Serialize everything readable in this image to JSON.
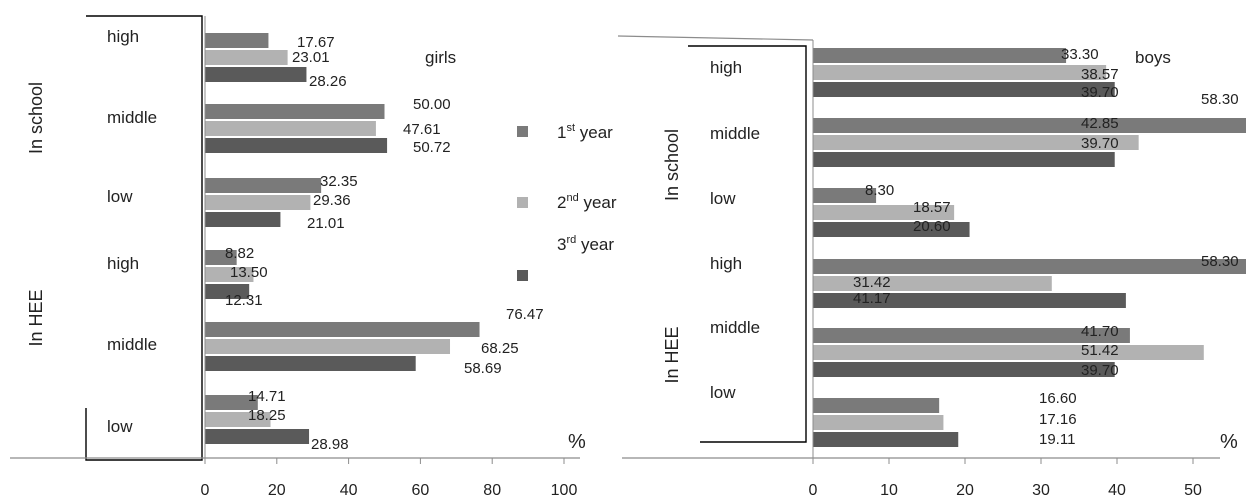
{
  "colors": {
    "year1": "#7a7a7a",
    "year2": "#b2b2b2",
    "year3": "#5a5a5a",
    "axis": "#8c8c8c",
    "bracket": "#000000"
  },
  "legend": {
    "items": [
      {
        "label": "1",
        "sup": "st",
        "rest": " year"
      },
      {
        "label": "2",
        "sup": "nd",
        "rest": " year"
      },
      {
        "label": "3",
        "sup": "rd",
        "rest": " year"
      }
    ]
  },
  "chart_data": [
    {
      "type": "bar",
      "orientation": "horizontal",
      "title": "girls",
      "xlabel": "%",
      "xlim": [
        0,
        100
      ],
      "x_ticks": [
        "0",
        "20",
        "40",
        "60",
        "80",
        "100"
      ],
      "group_labels": [
        "In school",
        "In HEE"
      ],
      "categories": [
        "high",
        "middle",
        "low",
        "high",
        "middle",
        "low"
      ],
      "series": [
        {
          "name": "1st year",
          "values": [
            17.67,
            50.0,
            32.35,
            8.82,
            76.47,
            14.71
          ],
          "labels": [
            "17.67",
            "50.00",
            "32.35",
            "8.82",
            "76.47",
            "14.71"
          ]
        },
        {
          "name": "2nd year",
          "values": [
            23.01,
            47.61,
            29.36,
            13.5,
            68.25,
            18.25
          ],
          "labels": [
            "23.01",
            "47.61",
            "29.36",
            "13.50",
            "68.25",
            "18.25"
          ]
        },
        {
          "name": "3rd year",
          "values": [
            28.26,
            50.72,
            21.01,
            12.31,
            58.69,
            28.98
          ],
          "labels": [
            "28.26",
            "50.72",
            "21.01",
            "12.31",
            "58.69",
            "28.98"
          ]
        }
      ]
    },
    {
      "type": "bar",
      "orientation": "horizontal",
      "title": "boys",
      "xlabel": "%",
      "xlim": [
        0,
        70
      ],
      "x_ticks": [
        "0",
        "10",
        "20",
        "30",
        "40",
        "50",
        "60",
        "70"
      ],
      "group_labels": [
        "In school",
        "In HEE"
      ],
      "categories": [
        "high",
        "middle",
        "low",
        "high",
        "middle",
        "low"
      ],
      "series": [
        {
          "name": "1st year",
          "values": [
            33.3,
            58.3,
            8.3,
            58.3,
            41.7,
            16.6
          ],
          "labels": [
            "33.30",
            "58.30",
            "8.30",
            "58.30",
            "41.70",
            "16.60"
          ]
        },
        {
          "name": "2nd year",
          "values": [
            38.57,
            42.85,
            18.57,
            31.42,
            51.42,
            17.16
          ],
          "labels": [
            "38.57",
            "42.85",
            "18.57",
            "31.42",
            "51.42",
            "17.16"
          ]
        },
        {
          "name": "3rd year",
          "values": [
            39.7,
            39.7,
            20.6,
            41.17,
            39.7,
            19.11
          ],
          "labels": [
            "39.70",
            "39.70",
            "20.60",
            "41.17",
            "39.70",
            "19.11"
          ]
        }
      ]
    }
  ]
}
